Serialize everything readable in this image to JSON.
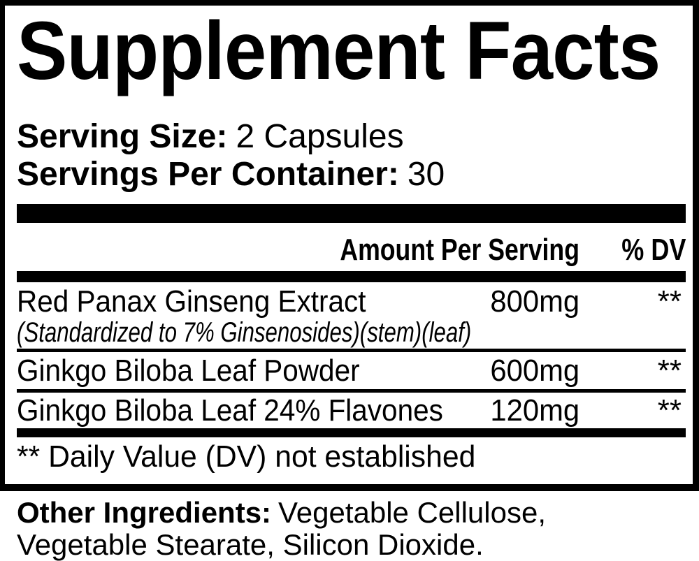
{
  "colors": {
    "ink": "#000000",
    "paper": "#ffffff"
  },
  "panel": {
    "title": "Supplement Facts",
    "serving_size": {
      "label": "Serving Size:",
      "value": "2 Capsules"
    },
    "servings_per_container": {
      "label": "Servings Per Container:",
      "value": "30"
    },
    "columns": {
      "amount": "Amount Per Serving",
      "dv": "% DV"
    },
    "rows": [
      {
        "name": "Red Panax Ginseng Extract",
        "detail": "(Standardized to 7% Ginsenosides)(stem)(leaf)",
        "amount": "800mg",
        "dv": "**"
      },
      {
        "name": "Ginkgo Biloba Leaf Powder",
        "amount": "600mg",
        "dv": "**"
      },
      {
        "name": "Ginkgo Biloba Leaf 24% Flavones",
        "amount": "120mg",
        "dv": "**"
      }
    ],
    "footnote": "** Daily Value (DV) not established"
  },
  "other_ingredients": {
    "label": "Other Ingredients:",
    "value": "Vegetable Cellulose, Vegetable Stearate, Silicon Dioxide."
  }
}
